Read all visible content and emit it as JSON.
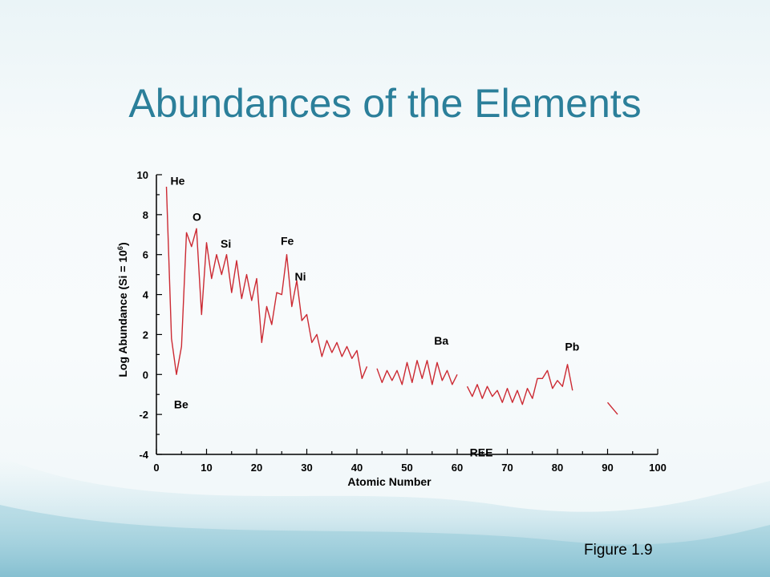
{
  "slide": {
    "title": "Abundances of the Elements",
    "figure_label": "Figure 1.9"
  },
  "colors": {
    "title": "#2b7f9a",
    "series": "#cc2a33",
    "axis": "#000000"
  },
  "chart_data": {
    "type": "line",
    "title": "",
    "xlabel": "Atomic Number",
    "ylabel": "Log Abundance (Si = 10",
    "ylabel_superscript": "6",
    "ylabel_suffix": ")",
    "xlim": [
      0,
      100
    ],
    "ylim": [
      -4,
      10
    ],
    "xticks": [
      0,
      10,
      20,
      30,
      40,
      50,
      60,
      70,
      80,
      90,
      100
    ],
    "yticks": [
      -4,
      -2,
      0,
      2,
      4,
      6,
      8,
      10
    ],
    "grid": false,
    "series": [
      {
        "segments": [
          [
            [
              2,
              9.4
            ],
            [
              3,
              1.8
            ],
            [
              4,
              0
            ],
            [
              5,
              1.4
            ],
            [
              6,
              7.1
            ],
            [
              7,
              6.4
            ],
            [
              8,
              7.3
            ],
            [
              9,
              3
            ],
            [
              10,
              6.6
            ],
            [
              11,
              4.8
            ],
            [
              12,
              6.0
            ],
            [
              13,
              5.0
            ],
            [
              14,
              6.0
            ],
            [
              15,
              4.1
            ],
            [
              16,
              5.7
            ],
            [
              17,
              3.8
            ],
            [
              18,
              5.0
            ],
            [
              19,
              3.7
            ],
            [
              20,
              4.8
            ],
            [
              21,
              1.6
            ],
            [
              22,
              3.4
            ],
            [
              23,
              2.5
            ],
            [
              24,
              4.1
            ],
            [
              25,
              4.0
            ],
            [
              26,
              6.0
            ],
            [
              27,
              3.4
            ],
            [
              28,
              4.7
            ],
            [
              29,
              2.7
            ],
            [
              30,
              3.0
            ],
            [
              31,
              1.6
            ],
            [
              32,
              2.0
            ],
            [
              33,
              0.9
            ],
            [
              34,
              1.7
            ],
            [
              35,
              1.1
            ],
            [
              36,
              1.6
            ],
            [
              37,
              0.9
            ],
            [
              38,
              1.4
            ],
            [
              39,
              0.8
            ],
            [
              40,
              1.2
            ],
            [
              41,
              -0.2
            ],
            [
              42,
              0.4
            ]
          ],
          [
            [
              44,
              0.3
            ],
            [
              45,
              -0.4
            ],
            [
              46,
              0.2
            ],
            [
              47,
              -0.3
            ],
            [
              48,
              0.2
            ],
            [
              49,
              -0.5
            ],
            [
              50,
              0.6
            ],
            [
              51,
              -0.4
            ],
            [
              52,
              0.7
            ],
            [
              53,
              -0.2
            ],
            [
              54,
              0.7
            ],
            [
              55,
              -0.5
            ],
            [
              56,
              0.6
            ],
            [
              57,
              -0.3
            ],
            [
              58,
              0.2
            ],
            [
              59,
              -0.5
            ],
            [
              60,
              0
            ]
          ],
          [
            [
              62,
              -0.6
            ],
            [
              63,
              -1.1
            ],
            [
              64,
              -0.5
            ],
            [
              65,
              -1.2
            ],
            [
              66,
              -0.6
            ],
            [
              67,
              -1.1
            ],
            [
              68,
              -0.8
            ],
            [
              69,
              -1.4
            ],
            [
              70,
              -0.7
            ],
            [
              71,
              -1.4
            ],
            [
              72,
              -0.8
            ],
            [
              73,
              -1.5
            ],
            [
              74,
              -0.7
            ],
            [
              75,
              -1.2
            ],
            [
              76,
              -0.2
            ],
            [
              77,
              -0.2
            ],
            [
              78,
              0.2
            ],
            [
              79,
              -0.7
            ],
            [
              80,
              -0.3
            ],
            [
              81,
              -0.6
            ],
            [
              82,
              0.5
            ],
            [
              83,
              -0.8
            ]
          ],
          [
            [
              90,
              -1.4
            ],
            [
              92,
              -2
            ]
          ]
        ]
      }
    ],
    "annotations": [
      {
        "text": "He",
        "x": 2.8,
        "y": 9.5
      },
      {
        "text": "O",
        "x": 7.2,
        "y": 7.7
      },
      {
        "text": "Si",
        "x": 12.8,
        "y": 6.35
      },
      {
        "text": "Fe",
        "x": 24.8,
        "y": 6.5
      },
      {
        "text": "Ni",
        "x": 27.6,
        "y": 4.7
      },
      {
        "text": "Be",
        "x": 3.5,
        "y": -1.7
      },
      {
        "text": "Ba",
        "x": 55.4,
        "y": 1.5
      },
      {
        "text": "Pb",
        "x": 81.5,
        "y": 1.2
      },
      {
        "text": "REE",
        "x": 62.5,
        "y": -4.1
      }
    ]
  }
}
